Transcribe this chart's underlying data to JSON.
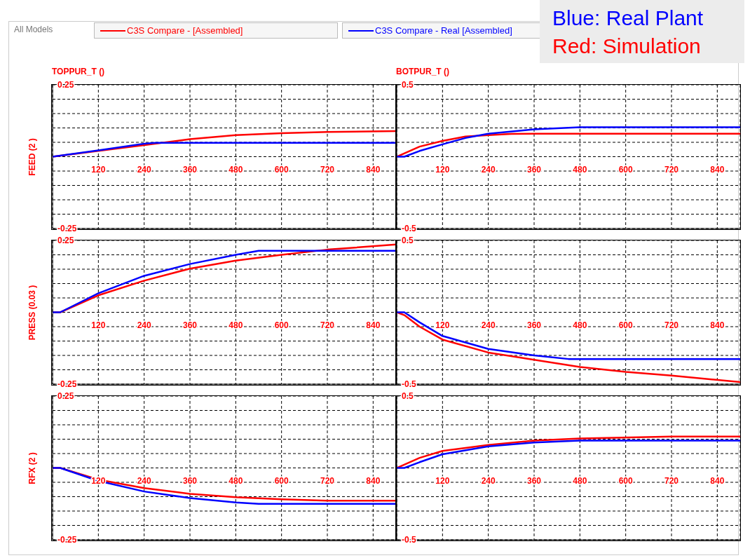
{
  "chart_data": [
    {
      "type": "line",
      "title": "TOPPUR_T ()",
      "ylabel": "FEED (2 )",
      "annotations": [
        "All Models",
        "Blue: Real Plant",
        "Red: Simulation"
      ],
      "legend": "top",
      "grid": true,
      "xlim": [
        0,
        900
      ],
      "xticks": [
        120,
        240,
        360,
        480,
        600,
        720,
        840
      ],
      "ylim": [
        -0.25,
        0.25
      ],
      "yticks": [
        -0.25,
        {
          "value": -0.2,
          "label": null
        },
        {
          "value": -0.15,
          "label": null
        },
        {
          "value": -0.1,
          "label": null
        },
        {
          "value": -0.05,
          "label": null
        },
        {
          "value": 0,
          "label": null
        },
        {
          "value": 0.05,
          "label": null
        },
        {
          "value": 0.1,
          "label": null
        },
        {
          "value": 0.15,
          "label": null
        },
        {
          "value": 0.2,
          "label": null
        },
        0.25
      ],
      "series": [
        {
          "name": "C3S Compare - [Assembled]",
          "color": "#ff0000",
          "x": [
            0,
            120,
            240,
            360,
            480,
            600,
            720,
            900
          ],
          "values": [
            0,
            0.02,
            0.04,
            0.061,
            0.075,
            0.082,
            0.086,
            0.089
          ]
        },
        {
          "name": "C3S Compare - Real [Assembled]",
          "color": "#0000ff",
          "x": [
            0,
            120,
            240,
            270,
            900
          ],
          "values": [
            0,
            0.022,
            0.045,
            0.048,
            0.048
          ]
        }
      ]
    },
    {
      "type": "line",
      "title": "BOTPUR_T ()",
      "grid": true,
      "xlim": [
        0,
        900
      ],
      "xticks": [
        120,
        240,
        360,
        480,
        600,
        720,
        840
      ],
      "ylim": [
        -0.5,
        0.5
      ],
      "yticks": [
        -0.5,
        {
          "value": -0.4,
          "label": null
        },
        {
          "value": -0.3,
          "label": null
        },
        {
          "value": -0.2,
          "label": null
        },
        {
          "value": -0.1,
          "label": null
        },
        {
          "value": 0,
          "label": null
        },
        {
          "value": 0.1,
          "label": null
        },
        {
          "value": 0.2,
          "label": null
        },
        {
          "value": 0.3,
          "label": null
        },
        {
          "value": 0.4,
          "label": null
        },
        0.5
      ],
      "series": [
        {
          "color": "#ff0000",
          "x": [
            0,
            60,
            120,
            180,
            240,
            300,
            360,
            900
          ],
          "values": [
            0,
            0.07,
            0.11,
            0.14,
            0.15,
            0.158,
            0.16,
            0.16
          ]
        },
        {
          "color": "#0000ff",
          "x": [
            0,
            20,
            60,
            120,
            180,
            240,
            360,
            480,
            900
          ],
          "values": [
            0,
            0,
            0.04,
            0.086,
            0.13,
            0.16,
            0.19,
            0.205,
            0.205
          ]
        }
      ]
    },
    {
      "type": "line",
      "ylabel": "PRESS (0.03 )",
      "grid": true,
      "xlim": [
        0,
        900
      ],
      "xticks": [
        120,
        240,
        360,
        480,
        600,
        720,
        840
      ],
      "ylim": [
        -0.25,
        0.25
      ],
      "yticks": [
        -0.25,
        {
          "value": -0.2,
          "label": null
        },
        {
          "value": -0.15,
          "label": null
        },
        {
          "value": -0.1,
          "label": null
        },
        {
          "value": -0.05,
          "label": null
        },
        {
          "value": 0,
          "label": null
        },
        {
          "value": 0.05,
          "label": null
        },
        {
          "value": 0.1,
          "label": null
        },
        {
          "value": 0.15,
          "label": null
        },
        {
          "value": 0.2,
          "label": null
        },
        0.25
      ],
      "series": [
        {
          "color": "#ff0000",
          "x": [
            0,
            20,
            120,
            240,
            360,
            480,
            600,
            720,
            900
          ],
          "values": [
            0,
            0,
            0.059,
            0.11,
            0.152,
            0.18,
            0.2,
            0.218,
            0.236
          ]
        },
        {
          "color": "#0000ff",
          "x": [
            0,
            20,
            120,
            240,
            360,
            480,
            540,
            900
          ],
          "values": [
            0,
            0,
            0.066,
            0.127,
            0.168,
            0.2,
            0.214,
            0.214
          ]
        }
      ]
    },
    {
      "type": "line",
      "grid": true,
      "xlim": [
        0,
        900
      ],
      "xticks": [
        120,
        240,
        360,
        480,
        600,
        720,
        840
      ],
      "ylim": [
        -0.5,
        0.5
      ],
      "yticks": [
        -0.5,
        {
          "value": -0.4,
          "label": null
        },
        {
          "value": -0.3,
          "label": null
        },
        {
          "value": -0.2,
          "label": null
        },
        {
          "value": -0.1,
          "label": null
        },
        {
          "value": 0,
          "label": null
        },
        {
          "value": 0.1,
          "label": null
        },
        {
          "value": 0.2,
          "label": null
        },
        {
          "value": 0.3,
          "label": null
        },
        {
          "value": 0.4,
          "label": null
        },
        0.5
      ],
      "series": [
        {
          "color": "#ff0000",
          "x": [
            0,
            20,
            60,
            120,
            240,
            360,
            480,
            600,
            720,
            900
          ],
          "values": [
            0,
            -0.02,
            -0.1,
            -0.19,
            -0.28,
            -0.33,
            -0.38,
            -0.415,
            -0.44,
            -0.486
          ]
        },
        {
          "color": "#0000ff",
          "x": [
            0,
            20,
            60,
            120,
            240,
            360,
            450,
            900
          ],
          "values": [
            0,
            0,
            -0.07,
            -0.165,
            -0.255,
            -0.3,
            -0.325,
            -0.325
          ]
        }
      ]
    },
    {
      "type": "line",
      "ylabel": "RFX (2 )",
      "grid": true,
      "xlim": [
        0,
        900
      ],
      "xticks": [
        120,
        240,
        360,
        480,
        600,
        720,
        840
      ],
      "ylim": [
        -0.25,
        0.25
      ],
      "yticks": [
        -0.25,
        {
          "value": -0.2,
          "label": null
        },
        {
          "value": -0.15,
          "label": null
        },
        {
          "value": -0.1,
          "label": null
        },
        {
          "value": -0.05,
          "label": null
        },
        {
          "value": 0,
          "label": null
        },
        {
          "value": 0.05,
          "label": null
        },
        {
          "value": 0.1,
          "label": null
        },
        {
          "value": 0.15,
          "label": null
        },
        {
          "value": 0.2,
          "label": null
        },
        0.25
      ],
      "series": [
        {
          "color": "#ff0000",
          "x": [
            0,
            20,
            120,
            240,
            360,
            480,
            600,
            720,
            900
          ],
          "values": [
            0,
            0,
            -0.041,
            -0.07,
            -0.09,
            -0.102,
            -0.109,
            -0.114,
            -0.114
          ]
        },
        {
          "color": "#0000ff",
          "x": [
            0,
            20,
            120,
            240,
            360,
            480,
            540,
            900
          ],
          "values": [
            0,
            0,
            -0.045,
            -0.082,
            -0.105,
            -0.12,
            -0.125,
            -0.125
          ]
        }
      ]
    },
    {
      "type": "line",
      "grid": true,
      "xlim": [
        0,
        900
      ],
      "xticks": [
        120,
        240,
        360,
        480,
        600,
        720,
        840
      ],
      "ylim": [
        -0.5,
        0.5
      ],
      "yticks": [
        -0.5,
        {
          "value": -0.4,
          "label": null
        },
        {
          "value": -0.3,
          "label": null
        },
        {
          "value": -0.2,
          "label": null
        },
        {
          "value": -0.1,
          "label": null
        },
        {
          "value": 0,
          "label": null
        },
        {
          "value": 0.1,
          "label": null
        },
        {
          "value": 0.2,
          "label": null
        },
        {
          "value": 0.3,
          "label": null
        },
        {
          "value": 0.4,
          "label": null
        },
        0.5
      ],
      "series": [
        {
          "color": "#ff0000",
          "x": [
            0,
            60,
            120,
            240,
            360,
            480,
            720,
            900
          ],
          "values": [
            0,
            0.07,
            0.118,
            0.16,
            0.19,
            0.205,
            0.218,
            0.218
          ]
        },
        {
          "color": "#0000ff",
          "x": [
            0,
            20,
            60,
            120,
            240,
            360,
            480,
            900
          ],
          "values": [
            0,
            0,
            0.04,
            0.095,
            0.15,
            0.177,
            0.19,
            0.19
          ]
        }
      ]
    }
  ]
}
